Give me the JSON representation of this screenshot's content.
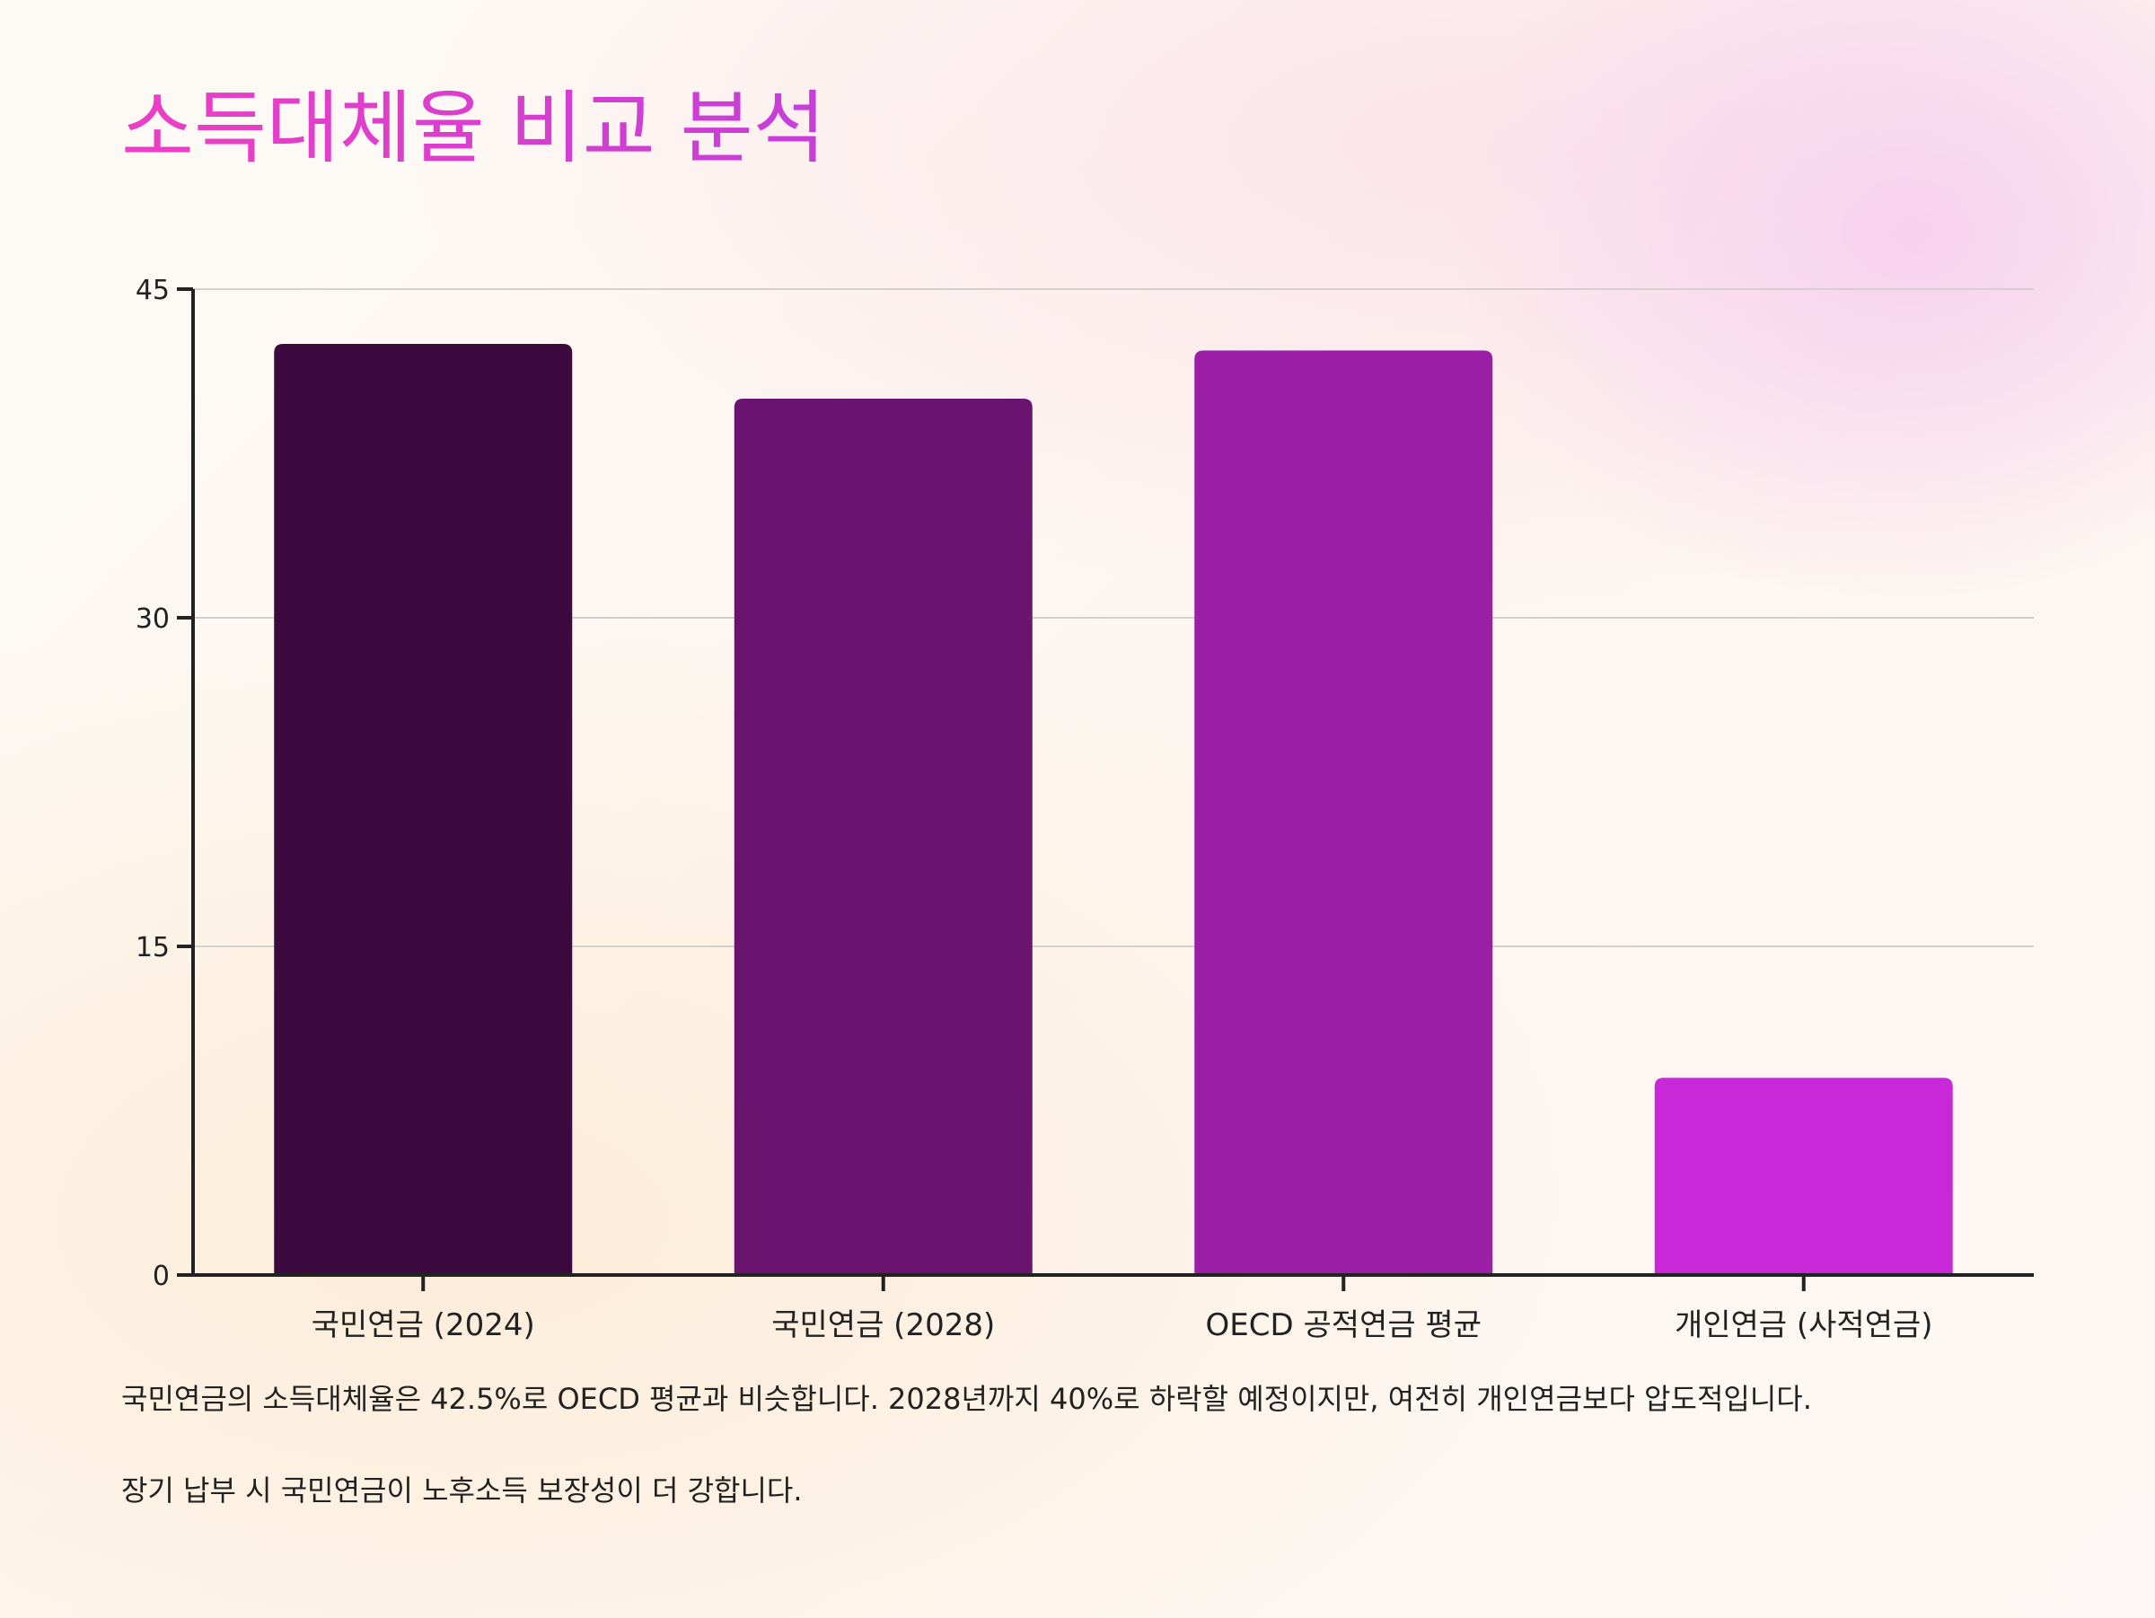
{
  "title": "소득대체율 비교 분석",
  "chart_data": {
    "type": "bar",
    "categories": [
      "국민연금 (2024)",
      "국민연금 (2028)",
      "OECD 공적연금 평균",
      "개인연금 (사적연금)"
    ],
    "values": [
      42.5,
      40,
      42.2,
      9
    ],
    "colors": [
      "#3d0a40",
      "#6a1470",
      "#9b1fa6",
      "#c928d8"
    ],
    "ylim": [
      0,
      45
    ],
    "yticks": [
      0,
      15,
      30,
      45
    ],
    "grid": true
  },
  "notes": [
    "국민연금의 소득대체율은 42.5%로 OECD 평균과 비슷합니다. 2028년까지 40%로 하락할 예정이지만, 여전히 개인연금보다 압도적입니다.",
    "장기 납부 시 국민연금이 노후소득 보장성이 더 강합니다."
  ]
}
